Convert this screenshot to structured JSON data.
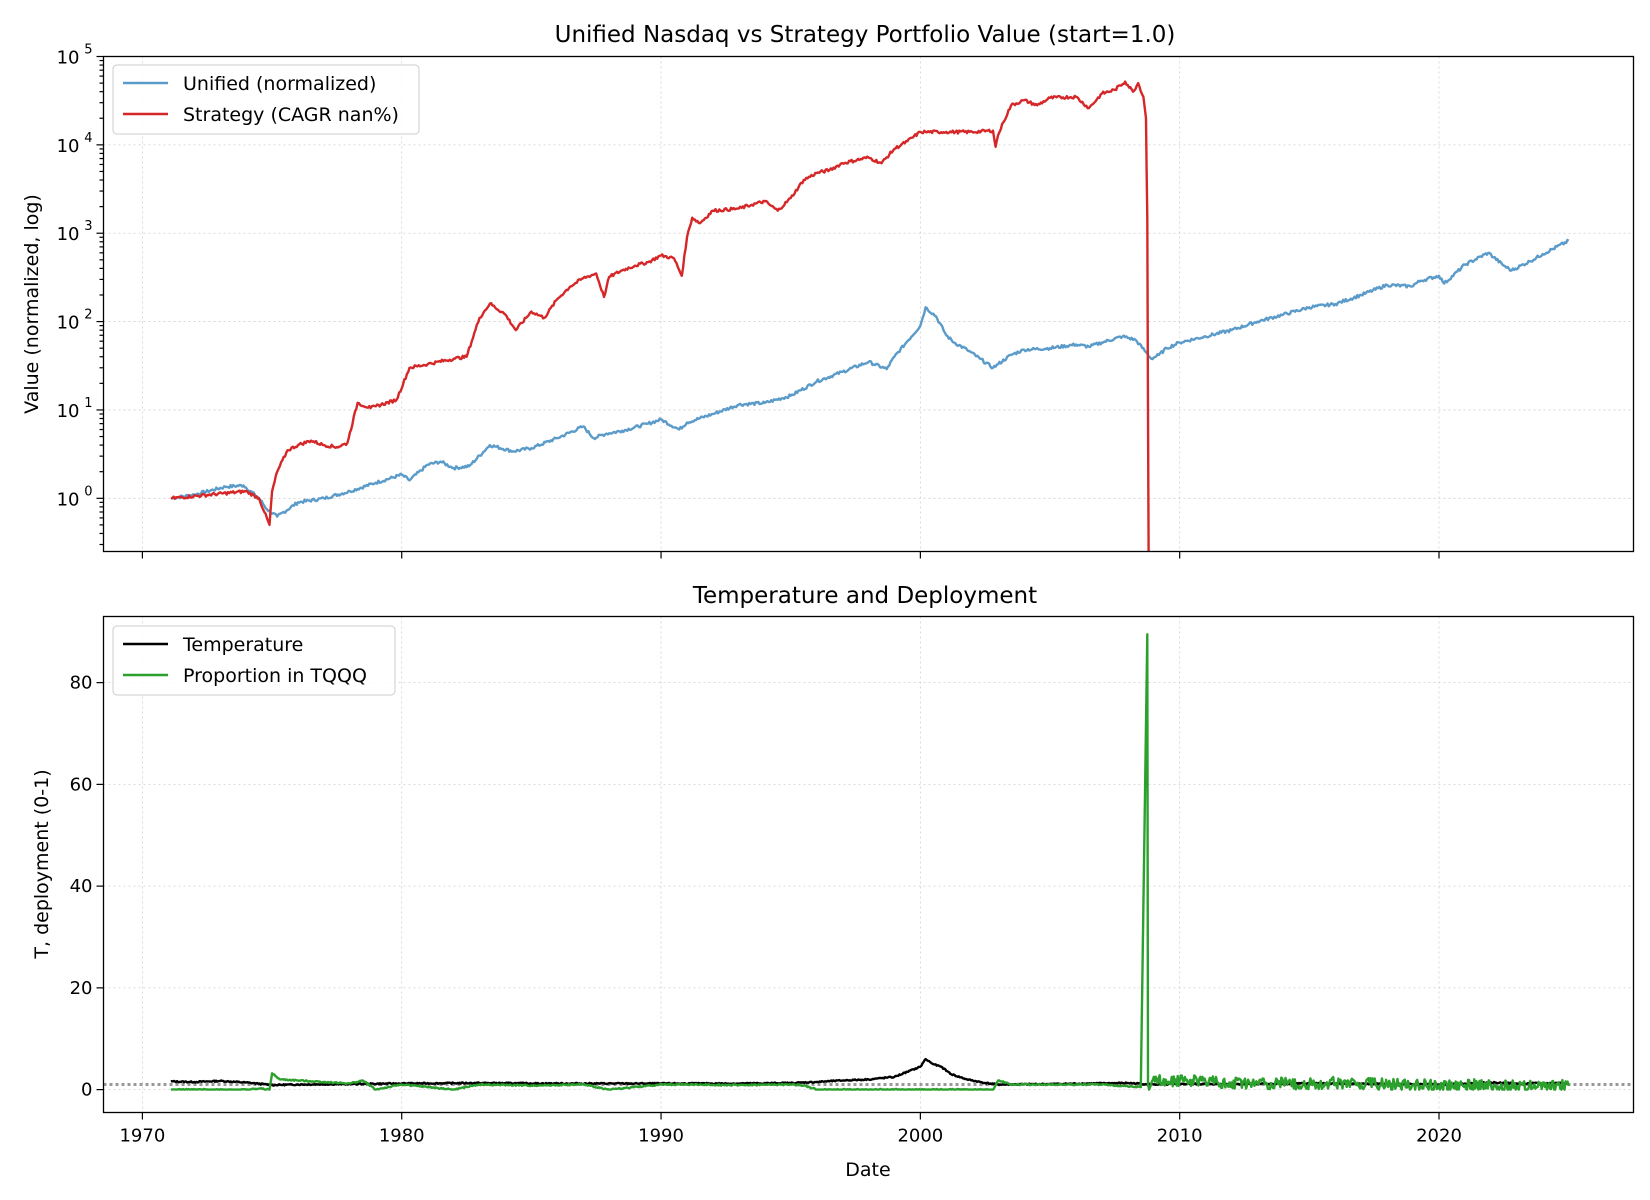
{
  "chart_data": [
    {
      "type": "line",
      "title": "Unified Nasdaq vs Strategy Portfolio Value (start=1.0)",
      "xlabel": "",
      "ylabel": "Value (normalized, log)",
      "yscale": "log",
      "ylim": [
        0.25,
        100000
      ],
      "xlim": [
        1968.5,
        2027.5
      ],
      "grid": true,
      "legend_loc": "upper left",
      "ytick_labels": [
        {
          "v": 1,
          "base": "10",
          "exp": "0"
        },
        {
          "v": 10,
          "base": "10",
          "exp": "1"
        },
        {
          "v": 100,
          "base": "10",
          "exp": "2"
        },
        {
          "v": 1000,
          "base": "10",
          "exp": "3"
        },
        {
          "v": 10000,
          "base": "10",
          "exp": "4"
        },
        {
          "v": 100000,
          "base": "10",
          "exp": "5"
        }
      ],
      "series": [
        {
          "name": "Unified (normalized)",
          "color": "#5b9bc9",
          "x": [
            1971.1,
            1972.0,
            1973.2,
            1973.9,
            1974.5,
            1974.8,
            1975.2,
            1976.0,
            1977.0,
            1978.0,
            1979.0,
            1980.0,
            1980.3,
            1981.0,
            1981.5,
            1982.0,
            1982.6,
            1983.4,
            1984.3,
            1985.0,
            1986.0,
            1987.0,
            1987.4,
            1987.9,
            1988.5,
            1989.5,
            1990.0,
            1990.7,
            1991.0,
            1992.0,
            1993.0,
            1994.0,
            1995.0,
            1996.0,
            1997.0,
            1998.0,
            1998.7,
            1999.0,
            1999.5,
            2000.0,
            2000.2,
            2000.6,
            2001.0,
            2001.3,
            2001.8,
            2002.3,
            2002.8,
            2003.0,
            2003.5,
            2004.0,
            2005.0,
            2006.0,
            2006.5,
            2007.0,
            2007.8,
            2008.3,
            2008.7,
            2008.9,
            2009.2,
            2009.5,
            2010.0,
            2011.0,
            2012.0,
            2013.0,
            2014.0,
            2015.0,
            2016.0,
            2017.0,
            2018.0,
            2018.9,
            2019.3,
            2020.0,
            2020.2,
            2021.0,
            2021.9,
            2022.5,
            2022.8,
            2023.5,
            2024.0,
            2025.0
          ],
          "values": [
            1.0,
            1.1,
            1.35,
            1.4,
            1.0,
            0.75,
            0.62,
            0.9,
            1.0,
            1.2,
            1.5,
            1.85,
            1.6,
            2.4,
            2.6,
            2.2,
            2.3,
            4.0,
            3.4,
            3.7,
            4.8,
            6.5,
            4.8,
            5.4,
            5.8,
            7.0,
            7.8,
            6.0,
            7.2,
            9.0,
            11.5,
            12.0,
            14.5,
            21.0,
            27.0,
            35.0,
            29.0,
            40.0,
            60.0,
            90.0,
            145.0,
            115.0,
            70.0,
            58.0,
            48.0,
            38.0,
            30.0,
            33.0,
            42.0,
            48.0,
            50.0,
            55.0,
            52.0,
            58.0,
            68.0,
            62.0,
            45.0,
            38.0,
            42.0,
            50.0,
            58.0,
            68.0,
            80.0,
            100.0,
            120.0,
            145.0,
            158.0,
            200.0,
            260.0,
            250.0,
            290.0,
            330.0,
            270.0,
            440.0,
            600.0,
            430.0,
            380.0,
            480.0,
            580.0,
            820.0
          ]
        },
        {
          "name": "Strategy (CAGR nan%)",
          "color": "#d62728",
          "x": [
            1971.1,
            1974.0,
            1974.5,
            1974.7,
            1974.9,
            1975.0,
            1975.2,
            1975.6,
            1976.0,
            1976.5,
            1977.0,
            1977.5,
            1977.9,
            1978.3,
            1978.8,
            1979.0,
            1979.8,
            1980.3,
            1981.0,
            1982.0,
            1982.5,
            1983.0,
            1983.4,
            1984.0,
            1984.4,
            1985.0,
            1985.5,
            1986.0,
            1986.5,
            1987.0,
            1987.5,
            1987.8,
            1988.0,
            1988.5,
            1989.0,
            1989.5,
            1990.0,
            1990.5,
            1990.8,
            1991.0,
            1991.2,
            1991.5,
            1992.0,
            1993.0,
            1993.5,
            1994.0,
            1994.5,
            1995.0,
            1995.5,
            1996.0,
            1996.5,
            1997.0,
            1998.0,
            1998.5,
            1999.0,
            1999.5,
            2000.0,
            2000.2,
            2001.0,
            2002.0,
            2002.8,
            2002.9,
            2003.0,
            2003.2,
            2003.5,
            2004.0,
            2004.5,
            2005.0,
            2006.0,
            2006.5,
            2007.0,
            2007.5,
            2007.9,
            2008.2,
            2008.4,
            2008.6,
            2008.7,
            2008.75,
            2008.8
          ],
          "values": [
            1.0,
            1.2,
            1.0,
            0.7,
            0.5,
            1.2,
            2.0,
            3.5,
            4.0,
            4.5,
            4.0,
            3.8,
            4.2,
            12.0,
            10.5,
            11.0,
            13.0,
            30.0,
            33.0,
            38.0,
            40.0,
            110.0,
            160.0,
            120.0,
            80.0,
            130.0,
            110.0,
            180.0,
            250.0,
            310.0,
            350.0,
            190.0,
            320.0,
            380.0,
            430.0,
            470.0,
            560.0,
            520.0,
            330.0,
            900.0,
            1500.0,
            1300.0,
            1800.0,
            1900.0,
            2100.0,
            2300.0,
            1800.0,
            2500.0,
            4000.0,
            4800.0,
            5200.0,
            6200.0,
            7200.0,
            6200.0,
            9000.0,
            11000.0,
            14000.0,
            14000.0,
            14000.0,
            14000.0,
            14500.0,
            9500.0,
            13000.0,
            18000.0,
            28000.0,
            32000.0,
            28000.0,
            34000.0,
            35000.0,
            26000.0,
            38000.0,
            42000.0,
            52000.0,
            40000.0,
            50000.0,
            35000.0,
            20000.0,
            1500.0,
            0.25
          ]
        }
      ],
      "x_ticks": [
        1970,
        1980,
        1990,
        2000,
        2010,
        2020
      ]
    },
    {
      "type": "line",
      "title": "Temperature and Deployment",
      "xlabel": "Date",
      "ylabel": "T, deployment (0-1)",
      "ylim": [
        -4.5,
        93
      ],
      "xlim": [
        1968.5,
        2027.5
      ],
      "grid": true,
      "legend_loc": "upper left",
      "y_ticks": [
        0,
        20,
        40,
        60,
        80
      ],
      "x_ticks": [
        1970,
        1980,
        1990,
        2000,
        2010,
        2020
      ],
      "x_tick_labels": [
        "1970",
        "1980",
        "1990",
        "2000",
        "2010",
        "2020"
      ],
      "reference_line": {
        "y": 1.0,
        "color": "#999999",
        "style": "dotted"
      },
      "series": [
        {
          "name": "Temperature",
          "color": "#000000",
          "x": [
            1971.1,
            1972.0,
            1973.0,
            1974.0,
            1975.0,
            1976.0,
            1978.0,
            1980.0,
            1983.0,
            1986.0,
            1990.0,
            1993.0,
            1995.0,
            1996.0,
            1997.0,
            1998.0,
            1999.0,
            1999.5,
            2000.0,
            2000.2,
            2000.5,
            2000.8,
            2001.2,
            2001.8,
            2002.5,
            2003.0,
            2005.0,
            2008.0,
            2009.0,
            2010.0,
            2012.0,
            2015.0,
            2018.0,
            2020.0,
            2021.0,
            2022.0,
            2023.0,
            2025.0
          ],
          "values": [
            1.6,
            1.5,
            1.7,
            1.4,
            0.9,
            1.0,
            1.1,
            1.2,
            1.3,
            1.2,
            1.2,
            1.2,
            1.3,
            1.5,
            1.8,
            2.0,
            2.5,
            3.5,
            4.5,
            6.0,
            5.0,
            4.5,
            3.0,
            2.0,
            1.3,
            1.0,
            1.1,
            1.3,
            1.0,
            1.1,
            1.1,
            1.2,
            1.1,
            1.0,
            1.2,
            1.4,
            1.2,
            1.3
          ]
        },
        {
          "name": "Proportion in TQQQ",
          "color": "#2ca02c",
          "x": [
            1971.1,
            1974.0,
            1974.5,
            1974.9,
            1975.0,
            1975.3,
            1976.0,
            1977.0,
            1978.0,
            1978.5,
            1979.0,
            1980.0,
            1982.0,
            1983.0,
            1985.0,
            1987.0,
            1988.0,
            1990.0,
            1991.0,
            1993.0,
            1995.0,
            1995.5,
            1996.0,
            1998.0,
            2000.0,
            2002.0,
            2002.8,
            2003.0,
            2003.5,
            2005.0,
            2007.0,
            2008.5,
            2008.75,
            2008.78,
            2008.82,
            2009.0,
            2009.5,
            2010.0,
            2011.0,
            2012.0,
            2013.0,
            2014.0,
            2015.0,
            2016.0,
            2017.0,
            2018.0,
            2019.0,
            2020.0,
            2021.0,
            2022.0,
            2023.0,
            2025.0
          ],
          "values": [
            0.0,
            0.0,
            0.2,
            0.0,
            3.2,
            2.0,
            1.8,
            1.5,
            1.2,
            1.8,
            0.0,
            1.0,
            0.0,
            1.0,
            0.8,
            1.0,
            0.0,
            1.0,
            1.0,
            0.9,
            1.0,
            0.8,
            0.0,
            0.0,
            0.0,
            0.0,
            0.0,
            1.8,
            1.0,
            1.0,
            1.0,
            0.5,
            89.5,
            1.0,
            0.0,
            2.5,
            1.5,
            1.8,
            1.6,
            1.4,
            1.3,
            1.2,
            1.2,
            1.3,
            1.1,
            1.0,
            0.9,
            0.8,
            0.9,
            0.8,
            0.7,
            0.7
          ]
        }
      ]
    }
  ]
}
